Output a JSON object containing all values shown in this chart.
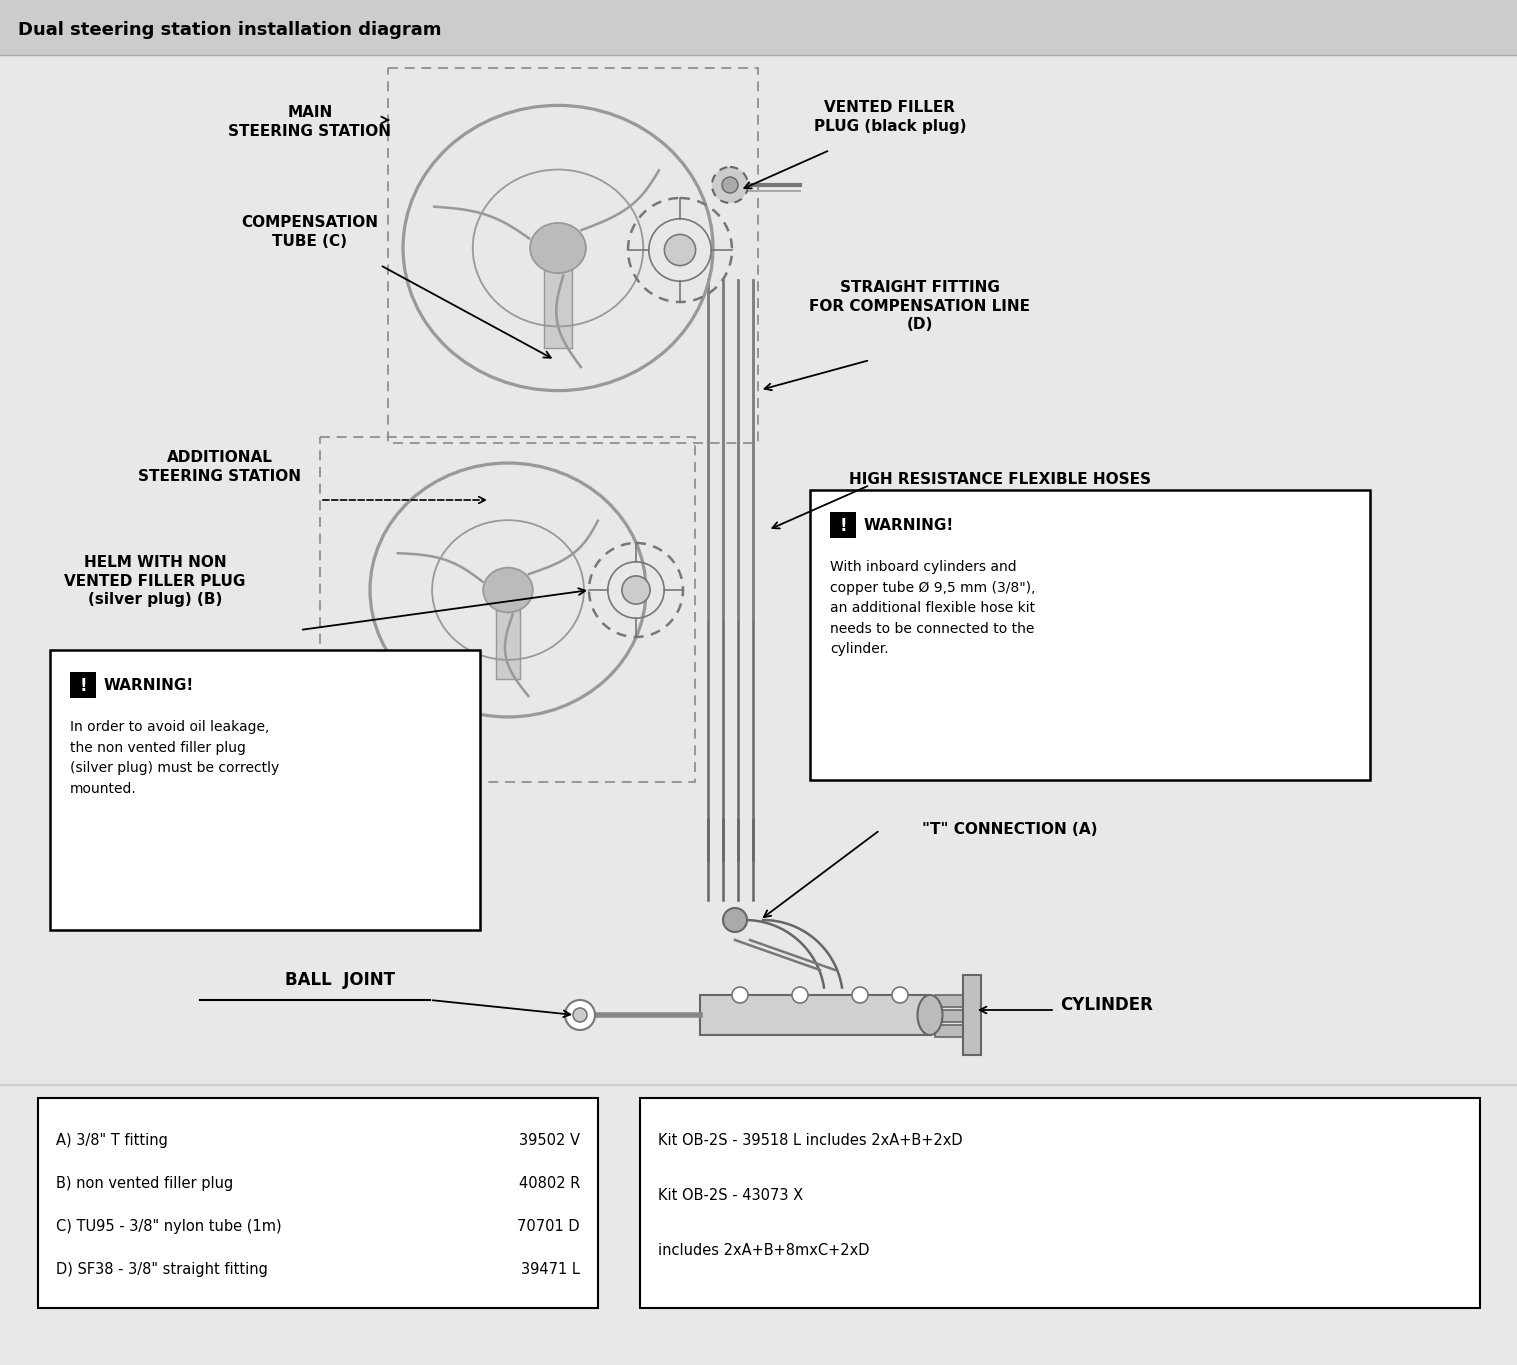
{
  "title": "Dual steering station installation diagram",
  "bg_color": "#e8e8e8",
  "diagram_bg": "#ffffff",
  "title_fontsize": 13,
  "label_fontsize": 10,
  "labels": {
    "main_steering": "MAIN\nSTEERING STATION",
    "compensation_tube": "COMPENSATION\nTUBE (C)",
    "additional_steering": "ADDITIONAL\nSTEERING STATION",
    "helm_non_vented": "HELM WITH NON\nVENTED FILLER PLUG\n(silver plug) (B)",
    "vented_filler": "VENTED FILLER\nPLUG (black plug)",
    "straight_fitting": "STRAIGHT FITTING\nFOR COMPENSATION LINE\n(D)",
    "high_resistance": "HIGH RESISTANCE FLEXIBLE HOSES",
    "t_connection": "\"T\" CONNECTION (A)",
    "ball_joint": "BALL  JOINT",
    "cylinder": "CYLINDER"
  },
  "warning1_title": "⚠ WARNING!",
  "warning1_body": "In order to avoid oil leakage,\nthe non vented filler plug\n(silver plug) must be correctly\nmounted.",
  "warning2_title": "⚠ WARNING!",
  "warning2_body": "With inboard cylinders and\ncopper tube Ø 9,5 mm (3/8\"),\nan additional flexible hose kit\nneeds to be connected to the\ncylinder.",
  "parts_left": [
    [
      "A) 3/8\" T fitting",
      "39502 V"
    ],
    [
      "B) non vented filler plug",
      "40802 R"
    ],
    [
      "C) TU95 - 3/8\" nylon tube (1m)",
      "70701 D"
    ],
    [
      "D) SF38 - 3/8\" straight fitting",
      "39471 L"
    ]
  ],
  "parts_right": [
    "Kit OB-2S - 39518 L includes 2xA+B+2xD",
    "Kit OB-2S - 43073 X",
    "includes 2xA+B+8mxC+2xD"
  ],
  "line_color": "#555555",
  "dash_color": "#777777"
}
